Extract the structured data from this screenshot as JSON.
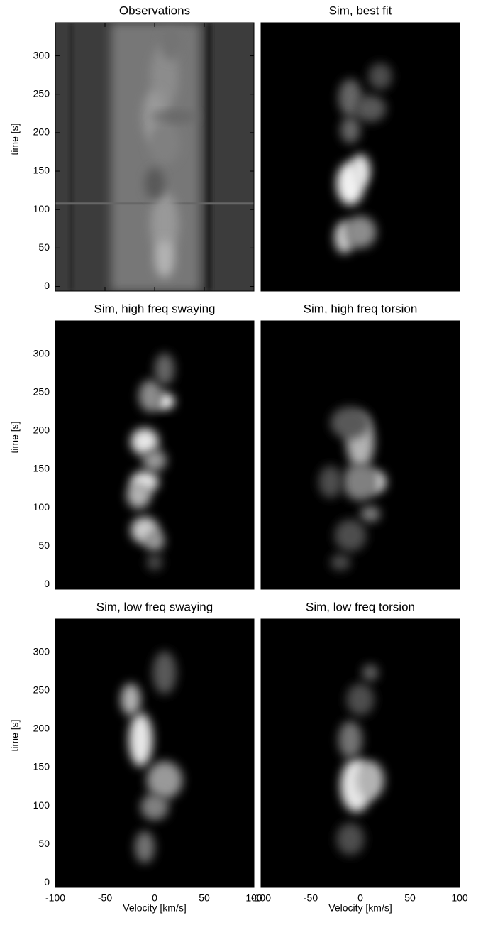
{
  "chart_data": [
    {
      "type": "heatmap",
      "title": "Observations",
      "ylabel": "time [s]",
      "xlim": [
        -100,
        100
      ],
      "ylim": [
        -6,
        343
      ],
      "xticks": [
        -100,
        -50,
        0,
        50,
        100
      ],
      "yticks": [
        0,
        50,
        100,
        150,
        200,
        250,
        300
      ],
      "colormap": "gray"
    },
    {
      "type": "heatmap",
      "title": "Sim, best fit",
      "xlim": [
        -100,
        100
      ],
      "ylim": [
        -6,
        343
      ],
      "xticks": [
        -100,
        -50,
        0,
        50,
        100
      ],
      "yticks": [
        0,
        50,
        100,
        150,
        200,
        250,
        300
      ],
      "colormap": "gray"
    },
    {
      "type": "heatmap",
      "title": "Sim, high freq swaying",
      "ylabel": "time [s]",
      "xlim": [
        -100,
        100
      ],
      "ylim": [
        -6,
        343
      ],
      "xticks": [
        -100,
        -50,
        0,
        50,
        100
      ],
      "yticks": [
        0,
        50,
        100,
        150,
        200,
        250,
        300
      ],
      "colormap": "gray"
    },
    {
      "type": "heatmap",
      "title": "Sim, high freq torsion",
      "xlim": [
        -100,
        100
      ],
      "ylim": [
        -6,
        343
      ],
      "xticks": [
        -100,
        -50,
        0,
        50,
        100
      ],
      "yticks": [
        0,
        50,
        100,
        150,
        200,
        250,
        300
      ],
      "colormap": "gray"
    },
    {
      "type": "heatmap",
      "title": "Sim, low freq swaying",
      "ylabel": "time [s]",
      "xlabel": "Velocity [km/s]",
      "xlim": [
        -100,
        100
      ],
      "ylim": [
        -6,
        343
      ],
      "xticks": [
        -100,
        -50,
        0,
        50,
        100
      ],
      "yticks": [
        0,
        50,
        100,
        150,
        200,
        250,
        300
      ],
      "colormap": "gray"
    },
    {
      "type": "heatmap",
      "title": "Sim, low freq torsion",
      "xlabel": "Velocity [km/s]",
      "xlim": [
        -100,
        100
      ],
      "ylim": [
        -6,
        343
      ],
      "xticks": [
        -100,
        -50,
        0,
        50,
        100
      ],
      "yticks": [
        0,
        50,
        100,
        150,
        200,
        250,
        300
      ],
      "colormap": "gray"
    }
  ]
}
